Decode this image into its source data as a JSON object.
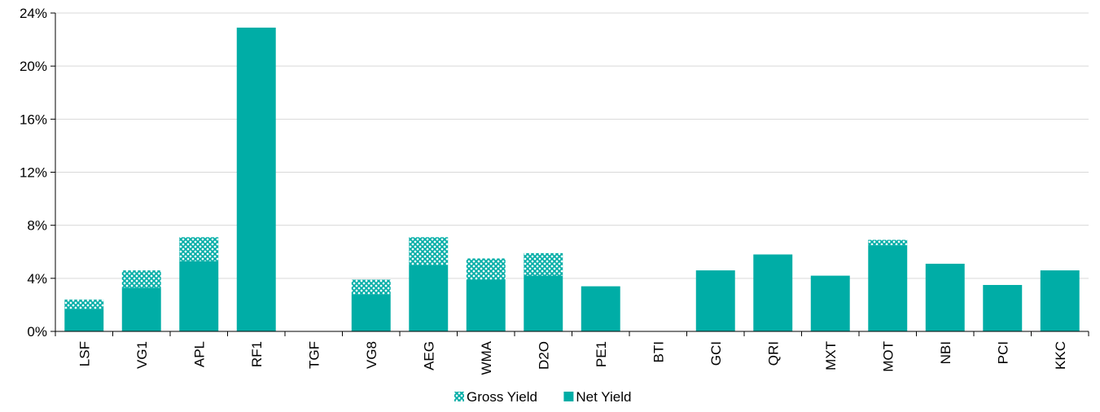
{
  "chart_data": {
    "type": "bar",
    "stacked": true,
    "categories": [
      "LSF",
      "VG1",
      "APL",
      "RF1",
      "TGF",
      "VG8",
      "AEG",
      "WMA",
      "D2O",
      "PE1",
      "BTI",
      "GCI",
      "QRI",
      "MXT",
      "MOT",
      "NBI",
      "PCI",
      "KKC"
    ],
    "series": [
      {
        "name": "Net Yield",
        "values": [
          1.7,
          3.3,
          5.3,
          22.9,
          0,
          2.8,
          5.0,
          3.9,
          4.2,
          3.4,
          0,
          4.6,
          5.8,
          4.2,
          6.5,
          5.1,
          3.5,
          4.6
        ],
        "color": "#00ADA6",
        "pattern": "solid"
      },
      {
        "name": "Gross Yield",
        "values": [
          0.7,
          1.3,
          1.8,
          0,
          0,
          1.1,
          2.1,
          1.6,
          1.7,
          0,
          0,
          0,
          0,
          0,
          0.4,
          0,
          0,
          0
        ],
        "color": "#00ADA6",
        "pattern": "crosshatch"
      }
    ],
    "title": "",
    "xlabel": "",
    "ylabel": "",
    "ylim": [
      0,
      24
    ],
    "yticks": [
      "0%",
      "4%",
      "8%",
      "12%",
      "16%",
      "20%",
      "24%"
    ],
    "ytick_values": [
      0,
      4,
      8,
      12,
      16,
      20,
      24
    ],
    "grid": true,
    "legend": {
      "placement": "bottom-center",
      "items": [
        "Gross Yield",
        "Net Yield"
      ]
    }
  }
}
